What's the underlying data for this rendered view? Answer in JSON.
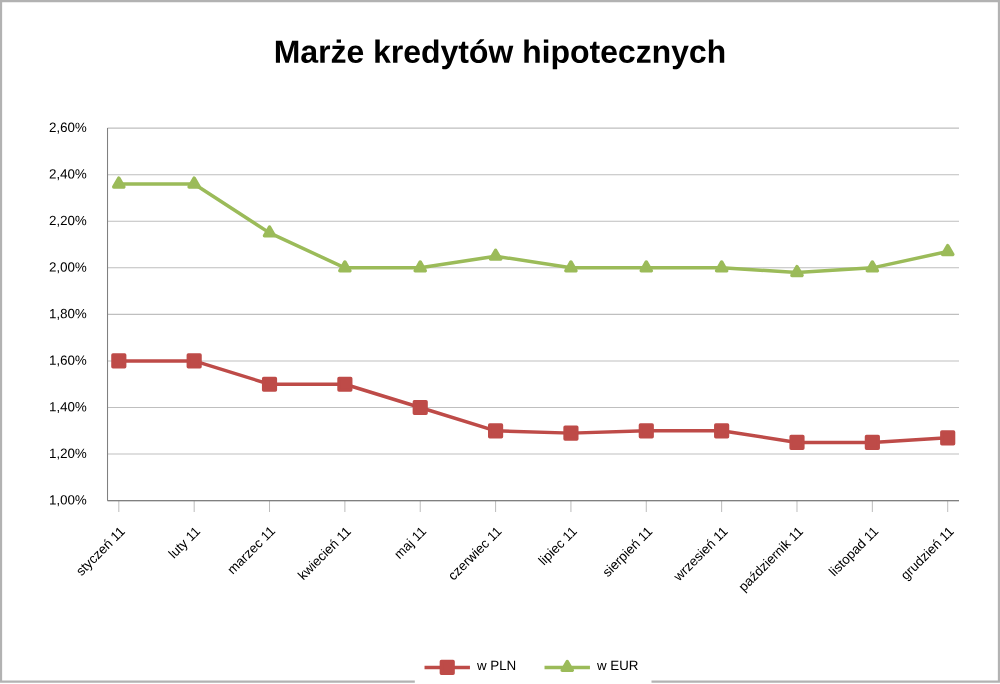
{
  "chart_data": {
    "type": "line",
    "title": "Marże kredytów hipotecznych",
    "categories": [
      "styczeń 11",
      "luty 11",
      "marzec 11",
      "kwiecień 11",
      "maj 11",
      "czerwiec 11",
      "lipiec 11",
      "sierpień 11",
      "wrzesień 11",
      "październik 11",
      "listopad 11",
      "grudzień 11"
    ],
    "series": [
      {
        "name": "w PLN",
        "color": "#be4b48",
        "marker": "square",
        "values": [
          1.6,
          1.6,
          1.5,
          1.5,
          1.4,
          1.3,
          1.29,
          1.3,
          1.3,
          1.25,
          1.25,
          1.27
        ]
      },
      {
        "name": "w EUR",
        "color": "#9bbb59",
        "marker": "triangle",
        "values": [
          2.36,
          2.36,
          2.15,
          2.0,
          2.0,
          2.05,
          2.0,
          2.0,
          2.0,
          1.98,
          2.0,
          2.07
        ]
      }
    ],
    "ylim": [
      1.0,
      2.6
    ],
    "yticks": [
      {
        "value": 1.0,
        "label": "1,00%"
      },
      {
        "value": 1.2,
        "label": "1,20%"
      },
      {
        "value": 1.4,
        "label": "1,40%"
      },
      {
        "value": 1.6,
        "label": "1,60%"
      },
      {
        "value": 1.8,
        "label": "1,80%"
      },
      {
        "value": 2.0,
        "label": "2,00%"
      },
      {
        "value": 2.2,
        "label": "2,20%"
      },
      {
        "value": 2.4,
        "label": "2,40%"
      },
      {
        "value": 2.6,
        "label": "2,60%"
      }
    ],
    "grid": "y",
    "legend": "bottom",
    "line_style": "solid"
  }
}
